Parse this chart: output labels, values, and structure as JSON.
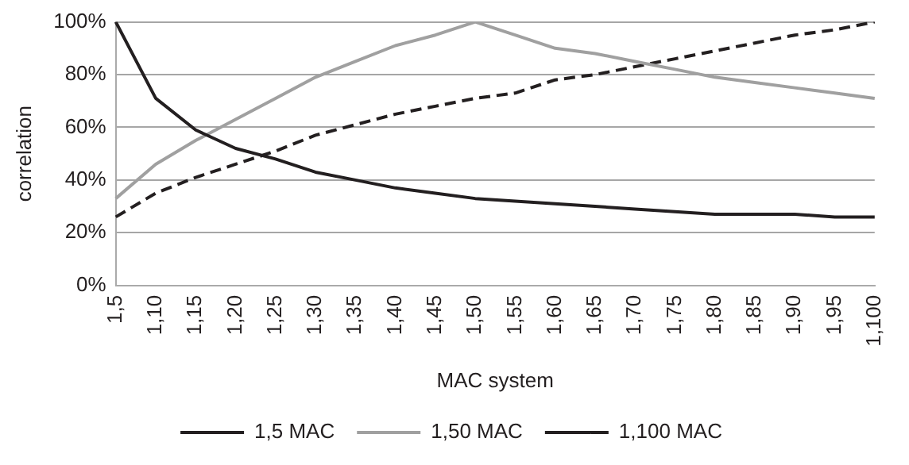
{
  "chart_data": {
    "type": "line",
    "xlabel": "MAC system",
    "ylabel": "correlation",
    "categories": [
      "1,5",
      "1,10",
      "1,15",
      "1,20",
      "1,25",
      "1,30",
      "1,35",
      "1,40",
      "1,45",
      "1,50",
      "1,55",
      "1,60",
      "1,65",
      "1,70",
      "1,75",
      "1,80",
      "1,85",
      "1,90",
      "1,95",
      "1,100"
    ],
    "series": [
      {
        "name": "1,5 MAC",
        "color": "#231f20",
        "line_style": "solid",
        "values": [
          100,
          71,
          59,
          52,
          48,
          43,
          40,
          37,
          35,
          33,
          32,
          31,
          30,
          29,
          28,
          27,
          27,
          27,
          26,
          26
        ]
      },
      {
        "name": "1,50 MAC",
        "color": "#a0a0a0",
        "line_style": "solid",
        "values": [
          33,
          46,
          55,
          63,
          71,
          79,
          85,
          91,
          95,
          100,
          95,
          90,
          88,
          85,
          82,
          79,
          77,
          75,
          73,
          71
        ]
      },
      {
        "name": "1,100 MAC",
        "color": "#231f20",
        "line_style": "dashed",
        "values": [
          26,
          35,
          41,
          46,
          51,
          57,
          61,
          65,
          68,
          71,
          73,
          78,
          80,
          83,
          86,
          89,
          92,
          95,
          97,
          100
        ]
      }
    ],
    "ylim": [
      0,
      100
    ],
    "yticks": [
      {
        "value": 0,
        "label": "0%"
      },
      {
        "value": 20,
        "label": "20%"
      },
      {
        "value": 40,
        "label": "40%"
      },
      {
        "value": 60,
        "label": "60%"
      },
      {
        "value": 80,
        "label": "80%"
      },
      {
        "value": 100,
        "label": "100%"
      }
    ],
    "grid": "y",
    "legend": "bottom",
    "marker": "none"
  }
}
